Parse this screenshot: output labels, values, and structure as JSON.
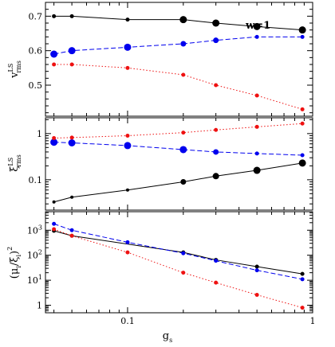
{
  "chart_data": [
    {
      "type": "line",
      "ylabel": {
        "base": "v",
        "sup": "LS",
        "sub": "rms"
      },
      "x_scale": "log",
      "y_scale": "linear",
      "xlim": [
        0.036,
        1.0
      ],
      "ylim": [
        0.41,
        0.74
      ],
      "yticks_major": [
        0.5,
        0.6,
        0.7
      ],
      "ytick_labels": [
        "0.5",
        "0.6",
        "0.7"
      ],
      "yticks_minor_step": 0.02,
      "annotation": "w=1",
      "series": [
        {
          "color": "#000000",
          "dash": "solid",
          "x": [
            0.04,
            0.05,
            0.1,
            0.2,
            0.3,
            0.5,
            0.88
          ],
          "y": [
            0.7,
            0.7,
            0.69,
            0.69,
            0.68,
            0.67,
            0.66
          ],
          "marker_size": [
            2.5,
            2.5,
            2.5,
            4.5,
            4.5,
            4.5,
            4.5
          ]
        },
        {
          "color": "#0000ee",
          "dash": "dashed",
          "x": [
            0.04,
            0.05,
            0.1,
            0.2,
            0.3,
            0.5,
            0.88
          ],
          "y": [
            0.59,
            0.6,
            0.61,
            0.62,
            0.63,
            0.64,
            0.64
          ],
          "marker_size": [
            4.5,
            4.5,
            4.5,
            3.5,
            3.5,
            2.5,
            2.5
          ]
        },
        {
          "color": "#ee1111",
          "dash": "dotted",
          "x": [
            0.04,
            0.05,
            0.1,
            0.2,
            0.3,
            0.5,
            0.88
          ],
          "y": [
            0.56,
            0.56,
            0.55,
            0.53,
            0.5,
            0.47,
            0.43
          ],
          "marker_size": [
            2.5,
            2.5,
            2.5,
            2.5,
            2.5,
            2.5,
            2.5
          ]
        }
      ]
    },
    {
      "type": "line",
      "ylabel": {
        "base": "ξ",
        "sup": "LS",
        "sub": "rms"
      },
      "x_scale": "log",
      "y_scale": "log",
      "xlim": [
        0.036,
        1.0
      ],
      "ylim": [
        0.022,
        2.2
      ],
      "yticks_major": [
        0.1,
        1
      ],
      "ytick_labels": [
        "0.1",
        "1"
      ],
      "series": [
        {
          "color": "#000000",
          "dash": "solid",
          "x": [
            0.04,
            0.05,
            0.1,
            0.2,
            0.3,
            0.5,
            0.88
          ],
          "y": [
            0.033,
            0.042,
            0.06,
            0.09,
            0.12,
            0.16,
            0.23
          ],
          "marker_size": [
            2.0,
            2.0,
            2.0,
            3.5,
            4.0,
            4.5,
            4.5
          ]
        },
        {
          "color": "#0000ee",
          "dash": "dashed",
          "x": [
            0.04,
            0.05,
            0.1,
            0.2,
            0.3,
            0.5,
            0.88
          ],
          "y": [
            0.65,
            0.63,
            0.55,
            0.45,
            0.4,
            0.37,
            0.34
          ],
          "marker_size": [
            4.5,
            4.5,
            4.5,
            4.5,
            3.5,
            2.5,
            2.5
          ]
        },
        {
          "color": "#ee1111",
          "dash": "dotted",
          "x": [
            0.04,
            0.05,
            0.1,
            0.2,
            0.3,
            0.5,
            0.88
          ],
          "y": [
            0.8,
            0.82,
            0.9,
            1.05,
            1.2,
            1.4,
            1.65
          ],
          "marker_size": [
            2.5,
            2.5,
            2.5,
            2.5,
            2.5,
            2.5,
            2.5
          ]
        }
      ]
    },
    {
      "type": "line",
      "ylabel": {
        "text": "(μ",
        "sub": "i",
        "mid": "/ξ",
        "sub2": "i",
        "end": ")",
        "sup": "2"
      },
      "x_scale": "log",
      "y_scale": "log",
      "xlim": [
        0.036,
        1.0
      ],
      "ylim": [
        0.5,
        5500
      ],
      "yticks_major": [
        1,
        10,
        100,
        1000
      ],
      "ytick_labels": [
        {
          "base": "1",
          "exp": ""
        },
        {
          "base": "10",
          "exp": "1"
        },
        {
          "base": "10",
          "exp": "2"
        },
        {
          "base": "10",
          "exp": "3"
        }
      ],
      "xlabel": {
        "base": "g",
        "sub": "s"
      },
      "xtick_labels": [
        {
          "value": 0.1,
          "label": "0.1"
        },
        {
          "value": 1,
          "label": "1"
        }
      ],
      "series": [
        {
          "color": "#000000",
          "dash": "solid",
          "x": [
            0.04,
            0.05,
            0.2,
            0.3,
            0.5,
            0.88
          ],
          "y": [
            950,
            600,
            130,
            65,
            35,
            18
          ],
          "marker_size": [
            2.5,
            2.5,
            2.5,
            2.5,
            2.5,
            2.5
          ]
        },
        {
          "color": "#0000ee",
          "dash": "dashed",
          "x": [
            0.04,
            0.05,
            0.1,
            0.2,
            0.3,
            0.5,
            0.88
          ],
          "y": [
            1800,
            1000,
            330,
            120,
            60,
            25,
            11
          ],
          "marker_size": [
            2.5,
            2.5,
            2.5,
            2.5,
            2.5,
            2.5,
            2.5
          ]
        },
        {
          "color": "#ee1111",
          "dash": "dotted",
          "x": [
            0.04,
            0.05,
            0.1,
            0.2,
            0.3,
            0.5,
            0.88
          ],
          "y": [
            1100,
            600,
            130,
            20,
            8,
            2.6,
            0.8
          ],
          "marker_size": [
            2.5,
            2.5,
            2.5,
            2.5,
            2.5,
            2.5,
            2.5
          ]
        }
      ]
    }
  ]
}
